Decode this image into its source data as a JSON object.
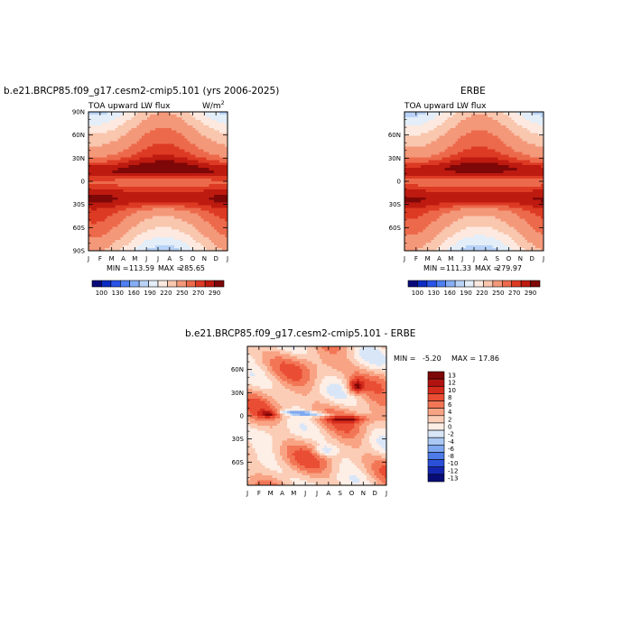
{
  "chart_data": [
    {
      "type": "heatmap",
      "title": "b.e21.BRCP85.f09_g17.cesm2-cmip5.101 (yrs 2006-2025)",
      "left_label": "TOA upward LW flux",
      "right_label": "W/m",
      "right_label_sup": "2",
      "x_tick_labels": [
        "J",
        "F",
        "M",
        "A",
        "M",
        "J",
        "J",
        "A",
        "S",
        "O",
        "N",
        "D",
        "J"
      ],
      "y_tick_labels": [
        "90N",
        "60N",
        "30N",
        "0",
        "30S",
        "60S",
        "90S"
      ],
      "ylim": [
        -90,
        90
      ],
      "stats": {
        "min_label": "MIN = ",
        "min": "113.59",
        "max_label": "MAX = ",
        "max": "285.65"
      },
      "colorbar_labels": [
        "100",
        "130",
        "160",
        "190",
        "220",
        "250",
        "270",
        "290"
      ]
    },
    {
      "type": "heatmap",
      "title": "ERBE",
      "left_label": "TOA upward LW flux",
      "x_tick_labels": [
        "J",
        "F",
        "M",
        "A",
        "M",
        "J",
        "J",
        "A",
        "S",
        "O",
        "N",
        "D",
        "J"
      ],
      "y_tick_labels": [
        "60N",
        "30N",
        "0",
        "30S",
        "60S"
      ],
      "ylim": [
        -90,
        90
      ],
      "stats": {
        "min_label": "MIN = ",
        "min": "111.33",
        "max_label": "MAX = ",
        "max": "279.97"
      },
      "colorbar_labels": [
        "100",
        "130",
        "160",
        "190",
        "220",
        "250",
        "270",
        "290"
      ]
    },
    {
      "type": "heatmap",
      "title": "b.e21.BRCP85.f09_g17.cesm2-cmip5.101 - ERBE",
      "x_tick_labels": [
        "J",
        "F",
        "M",
        "A",
        "M",
        "J",
        "J",
        "A",
        "S",
        "O",
        "N",
        "D",
        "J"
      ],
      "y_tick_labels": [
        "60N",
        "30N",
        "0",
        "30S",
        "60S"
      ],
      "ylim": [
        -90,
        90
      ],
      "stats": {
        "min_label": "MIN =",
        "min": "-5.20",
        "max_label": "MAX =",
        "max": "17.86"
      },
      "colorbar_labels": [
        "13",
        "12",
        "10",
        "8",
        "6",
        "4",
        "2",
        "0",
        "-2",
        "-4",
        "-6",
        "-8",
        "-10",
        "-12",
        "-13"
      ]
    }
  ],
  "colors": {
    "flux_scale": [
      "#07097a",
      "#0c2bc3",
      "#2a54e8",
      "#4f7ff0",
      "#86aef5",
      "#b9d3f8",
      "#e3eef9",
      "#fde9df",
      "#f9c6ae",
      "#f4987a",
      "#ec6a4b",
      "#dd3a24",
      "#bd1a10",
      "#7e0707"
    ],
    "diff_scale": [
      "#7e0707",
      "#b11410",
      "#d42b1c",
      "#e94d33",
      "#f27656",
      "#f8a384",
      "#fbcdb6",
      "#fdeee6",
      "#d9e6f8",
      "#aac8f3",
      "#7ea8ef",
      "#4e7be8",
      "#2a4fd9",
      "#1426b0",
      "#080c76"
    ]
  }
}
